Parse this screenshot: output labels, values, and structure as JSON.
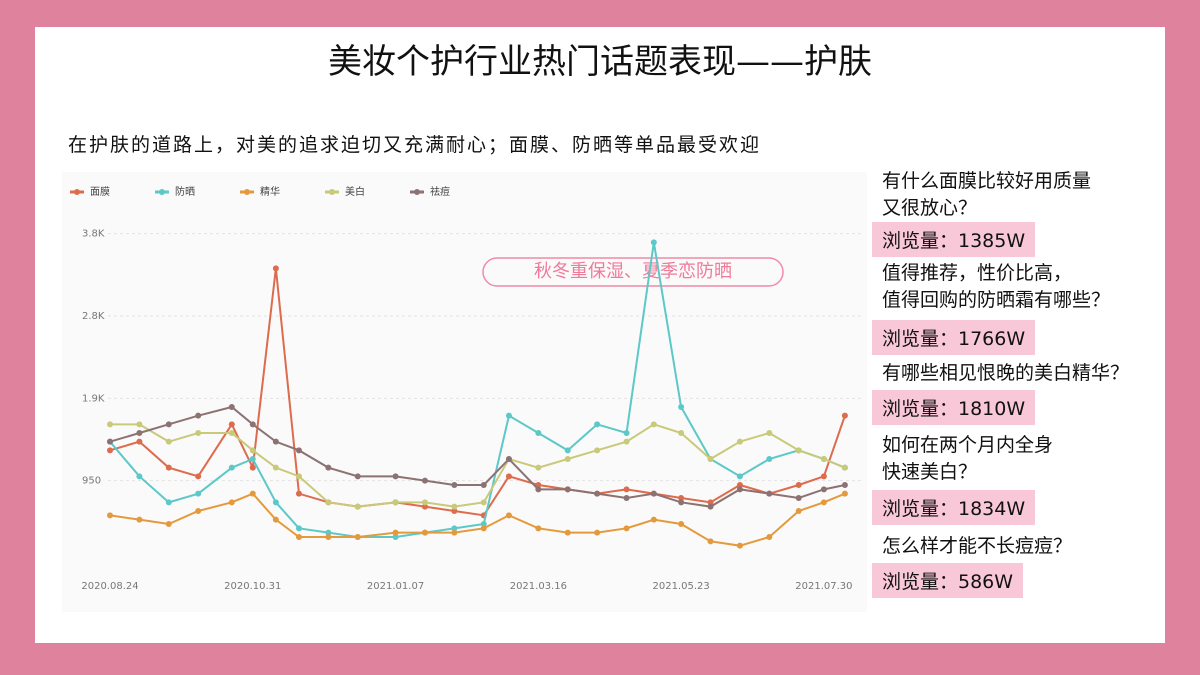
{
  "title": "美妆个护行业热门话题表现——护肤",
  "subtitle": "在护肤的道路上，对美的追求迫切又充满耐心；面膜、防晒等单品最受欢迎",
  "chart_data": {
    "type": "line",
    "annotation": "秋冬重保湿、夏季恋防晒",
    "x": [
      "2020.08.24",
      "2020.09.07",
      "2020.09.21",
      "2020.10.05",
      "2020.10.21",
      "2020.10.31",
      "2020.11.11",
      "2020.11.22",
      "2020.12.06",
      "2020.12.20",
      "2021.01.07",
      "2021.01.21",
      "2021.02.04",
      "2021.02.18",
      "2021.03.02",
      "2021.03.16",
      "2021.03.30",
      "2021.04.13",
      "2021.04.27",
      "2021.05.10",
      "2021.05.23",
      "2021.06.06",
      "2021.06.20",
      "2021.07.04",
      "2021.07.18",
      "2021.07.30",
      "2021.08.09"
    ],
    "xlim": [
      "2020.08.24",
      "2021.08.10"
    ],
    "xticks": [
      "2020.08.24",
      "2020.10.31",
      "2021.01.07",
      "2021.03.16",
      "2021.05.23",
      "2021.07.30"
    ],
    "ylim": [
      0,
      3900
    ],
    "yticks": [
      {
        "value": 950,
        "label": "950"
      },
      {
        "value": 1900,
        "label": "1.9K"
      },
      {
        "value": 2850,
        "label": "2.8K"
      },
      {
        "value": 3800,
        "label": "3.8K"
      }
    ],
    "grid": true,
    "series": [
      {
        "name": "面膜",
        "color": "#dd6b4d",
        "values": [
          1300,
          1400,
          1100,
          1000,
          1600,
          1100,
          3400,
          800,
          700,
          650,
          700,
          650,
          600,
          550,
          1000,
          900,
          850,
          800,
          850,
          800,
          750,
          700,
          900,
          800,
          900,
          1000,
          1700
        ]
      },
      {
        "name": "防晒",
        "color": "#5cc8c8",
        "values": [
          1400,
          1000,
          700,
          800,
          1100,
          1200,
          700,
          400,
          350,
          300,
          300,
          350,
          400,
          450,
          1700,
          1500,
          1300,
          1600,
          1500,
          3700,
          1800,
          1200,
          1000,
          1200,
          1300,
          1200,
          1100
        ]
      },
      {
        "name": "精华",
        "color": "#e49a3c",
        "values": [
          550,
          500,
          450,
          600,
          700,
          800,
          500,
          300,
          300,
          300,
          350,
          350,
          350,
          400,
          550,
          400,
          350,
          350,
          400,
          500,
          450,
          250,
          200,
          300,
          600,
          700,
          800
        ]
      },
      {
        "name": "美白",
        "color": "#c9c97a",
        "values": [
          1600,
          1600,
          1400,
          1500,
          1500,
          1300,
          1100,
          1000,
          700,
          650,
          700,
          700,
          650,
          700,
          1200,
          1100,
          1200,
          1300,
          1400,
          1600,
          1500,
          1200,
          1400,
          1500,
          1300,
          1200,
          1100
        ]
      },
      {
        "name": "祛痘",
        "color": "#8c7272",
        "values": [
          1400,
          1500,
          1600,
          1700,
          1800,
          1600,
          1400,
          1300,
          1100,
          1000,
          1000,
          950,
          900,
          900,
          1200,
          850,
          850,
          800,
          750,
          800,
          700,
          650,
          850,
          800,
          750,
          850,
          900
        ]
      }
    ]
  },
  "sidebar": [
    {
      "question": [
        "有什么面膜比较好用质量",
        "又很放心？"
      ],
      "views": "浏览量：1385W"
    },
    {
      "question": [
        "值得推荐，性价比高，",
        "值得回购的防晒霜有哪些？"
      ],
      "views": "浏览量：1766W"
    },
    {
      "question": [
        "有哪些相见恨晚的美白精华？"
      ],
      "views": "浏览量：1810W"
    },
    {
      "question": [
        "如何在两个月内全身",
        "快速美白？"
      ],
      "views": "浏览量：1834W"
    },
    {
      "question": [
        "怎么样才能不长痘痘？"
      ],
      "views": "浏览量：586W"
    }
  ]
}
